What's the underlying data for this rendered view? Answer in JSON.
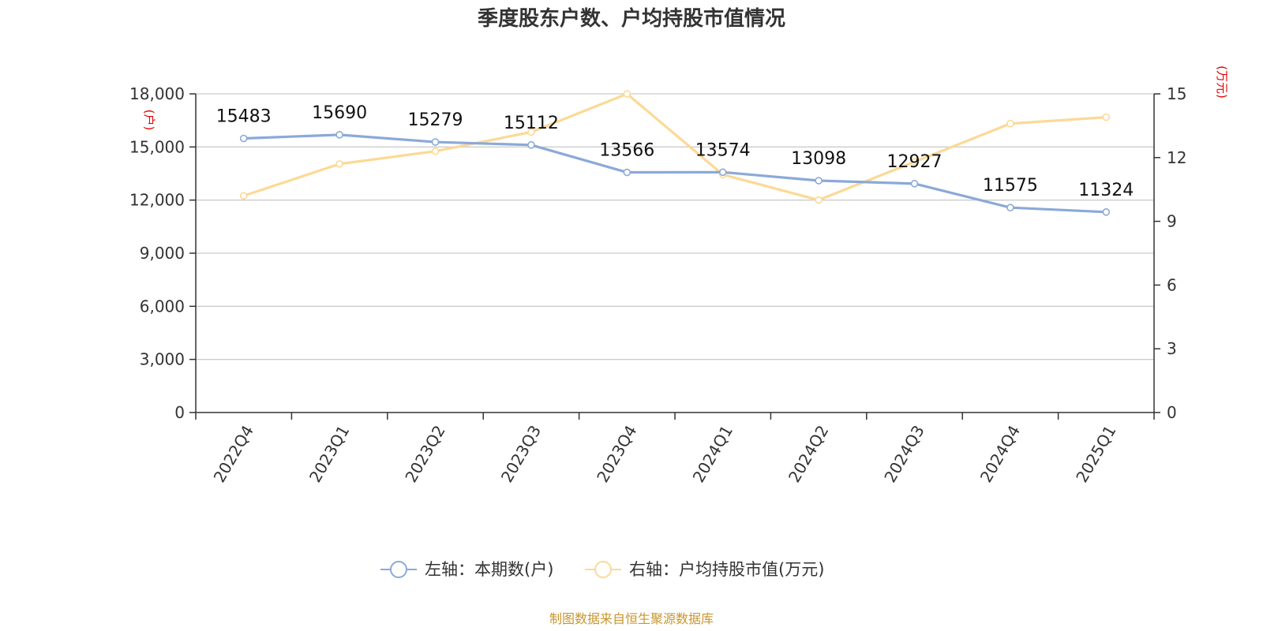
{
  "title": "季度股东户数、户均持股市值情况",
  "source": "制图数据来自恒生聚源数据库",
  "colors": {
    "left_series": "#8ba9d8",
    "right_series": "#fcd996",
    "unit": "#e60000",
    "source": "#c8962c"
  },
  "chart_data": {
    "type": "line",
    "title": "季度股东户数、户均持股市值情况",
    "categories": [
      "2022Q4",
      "2023Q1",
      "2023Q2",
      "2023Q3",
      "2023Q4",
      "2024Q1",
      "2024Q2",
      "2024Q3",
      "2024Q4",
      "2025Q1"
    ],
    "left_axis": {
      "unit": "(户)",
      "ylim": [
        0,
        18000
      ],
      "ticks": [
        "0",
        "3,000",
        "6,000",
        "9,000",
        "12,000",
        "15,000",
        "18,000"
      ],
      "tick_values": [
        0,
        3000,
        6000,
        9000,
        12000,
        15000,
        18000
      ]
    },
    "right_axis": {
      "unit": "(万元)",
      "ylim": [
        0,
        15
      ],
      "ticks": [
        "0",
        "3",
        "6",
        "9",
        "12",
        "15"
      ],
      "tick_values": [
        0,
        3,
        6,
        9,
        12,
        15
      ]
    },
    "grid": true,
    "legend_position": "bottom-center",
    "series": [
      {
        "name": "左轴：本期数(户)",
        "axis": "left",
        "values": [
          15483,
          15690,
          15279,
          15112,
          13566,
          13574,
          13098,
          12927,
          11575,
          11324
        ],
        "labels": [
          "15483",
          "15690",
          "15279",
          "15112",
          "13566",
          "13574",
          "13098",
          "12927",
          "11575",
          "11324"
        ]
      },
      {
        "name": "右轴：户均持股市值(万元)",
        "axis": "right",
        "values": [
          10.2,
          11.7,
          12.3,
          13.2,
          15.0,
          11.2,
          10.0,
          11.8,
          13.6,
          13.9
        ]
      }
    ]
  }
}
